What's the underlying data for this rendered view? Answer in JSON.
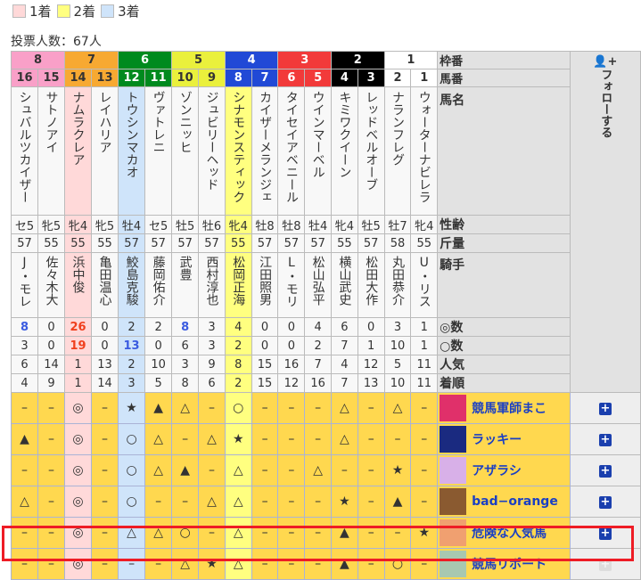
{
  "legend": [
    {
      "label": "1着",
      "color": "#ffd9d9"
    },
    {
      "label": "2着",
      "color": "#ffff80"
    },
    {
      "label": "3着",
      "color": "#cfe4fa"
    }
  ],
  "votes": "投票人数：67人",
  "labels": {
    "waku": "枠番",
    "umaban": "馬番",
    "name": "馬名",
    "sexage": "性齢",
    "weight": "斤量",
    "jockey": "騎手",
    "honmei": "◎数",
    "taikou": "○数",
    "ninki": "人気",
    "result": "着順"
  },
  "follow_label": "フォローする",
  "waku": [
    {
      "n": "8",
      "span": 2,
      "bg": "#f9a0c8",
      "fg": "#333"
    },
    {
      "n": "7",
      "span": 2,
      "bg": "#f7a932",
      "fg": "#333"
    },
    {
      "n": "6",
      "span": 2,
      "bg": "#008a1e",
      "fg": "#fff"
    },
    {
      "n": "5",
      "span": 2,
      "bg": "#eaf03c",
      "fg": "#333"
    },
    {
      "n": "4",
      "span": 2,
      "bg": "#2149d6",
      "fg": "#fff"
    },
    {
      "n": "3",
      "span": 2,
      "bg": "#f23a3a",
      "fg": "#fff"
    },
    {
      "n": "2",
      "span": 2,
      "bg": "#000000",
      "fg": "#fff"
    },
    {
      "n": "1",
      "span": 2,
      "bg": "#ffffff",
      "fg": "#333"
    }
  ],
  "highlight": {
    "1着": 2,
    "2着": 8,
    "3着": 4
  },
  "horses": {
    "umaban": [
      "16",
      "15",
      "14",
      "13",
      "12",
      "11",
      "10",
      "9",
      "8",
      "7",
      "6",
      "5",
      "4",
      "3",
      "2",
      "1"
    ],
    "names": [
      "シュバルツカイザー",
      "サトノアイ",
      "ナムラクレア",
      "レイハリア",
      "トウシンマカオ",
      "ヴァトレニ",
      "ゾンニッヒ",
      "ジュビリーヘッド",
      "シナモンスティック",
      "カイザーメランジェ",
      "タイセイアベニール",
      "ウインマーベル",
      "キミワクイーン",
      "レッドベルオーブ",
      "ナランフレグ",
      "ウォーターナビレラ"
    ],
    "sexage": [
      "セ5",
      "牝5",
      "牝4",
      "牝5",
      "牡4",
      "セ5",
      "牡5",
      "牡6",
      "牝4",
      "牡8",
      "牡8",
      "牡4",
      "牝4",
      "牡5",
      "牡7",
      "牝4"
    ],
    "weight": [
      "57",
      "55",
      "55",
      "55",
      "57",
      "57",
      "57",
      "57",
      "55",
      "57",
      "57",
      "57",
      "55",
      "57",
      "58",
      "55"
    ],
    "jockey": [
      "J・モレ",
      "佐々木大",
      "浜中俊",
      "亀田温心",
      "鮫島克駿",
      "藤岡佑介",
      "武豊",
      "西村淳也",
      "松岡正海",
      "江田照男",
      "L・モリ",
      "松山弘平",
      "横山武史",
      "松田大作",
      "丸田恭介",
      "U・リス"
    ],
    "honmei": [
      "8",
      "0",
      "26",
      "0",
      "2",
      "2",
      "8",
      "3",
      "4",
      "0",
      "0",
      "4",
      "6",
      "0",
      "3",
      "1"
    ],
    "taikou": [
      "3",
      "0",
      "19",
      "0",
      "13",
      "0",
      "6",
      "3",
      "2",
      "0",
      "0",
      "2",
      "7",
      "1",
      "10",
      "1"
    ],
    "ninki": [
      "6",
      "14",
      "1",
      "13",
      "2",
      "10",
      "3",
      "9",
      "8",
      "15",
      "16",
      "7",
      "4",
      "12",
      "5",
      "11"
    ],
    "result": [
      "4",
      "9",
      "1",
      "14",
      "3",
      "5",
      "8",
      "6",
      "2",
      "15",
      "12",
      "16",
      "7",
      "13",
      "10",
      "11"
    ]
  },
  "emphasis": {
    "honmei": {
      "0": "blue",
      "2": "red",
      "6": "blue"
    },
    "taikou": {
      "2": "red",
      "4": "blue"
    }
  },
  "predictions": [
    {
      "user": "競馬軍師まこ",
      "avatar": "#e0306a",
      "marks": [
        "–",
        "–",
        "◎",
        "–",
        "★",
        "▲",
        "△",
        "–",
        "○",
        "–",
        "–",
        "–",
        "△",
        "–",
        "△",
        "–"
      ],
      "follow_enabled": true
    },
    {
      "user": "ラッキー",
      "avatar": "#1a2a80",
      "marks": [
        "▲",
        "–",
        "◎",
        "–",
        "○",
        "△",
        "–",
        "△",
        "★",
        "–",
        "–",
        "–",
        "△",
        "–",
        "–",
        "–"
      ],
      "follow_enabled": true
    },
    {
      "user": "アザラシ",
      "avatar": "#d8b0e8",
      "marks": [
        "–",
        "–",
        "◎",
        "–",
        "○",
        "△",
        "▲",
        "–",
        "△",
        "–",
        "–",
        "△",
        "–",
        "–",
        "★",
        "–"
      ],
      "follow_enabled": true
    },
    {
      "user": "bad−orange",
      "avatar": "#8a5a30",
      "marks": [
        "△",
        "–",
        "◎",
        "–",
        "○",
        "–",
        "–",
        "△",
        "△",
        "–",
        "–",
        "–",
        "★",
        "–",
        "▲",
        "–"
      ],
      "follow_enabled": true
    },
    {
      "user": "危険な人気馬",
      "avatar": "#f0a070",
      "marks": [
        "–",
        "–",
        "◎",
        "–",
        "△",
        "△",
        "○",
        "–",
        "△",
        "–",
        "–",
        "–",
        "▲",
        "–",
        "–",
        "★"
      ],
      "follow_enabled": true
    },
    {
      "user": "競馬リポート",
      "avatar": "#a8c8b0",
      "marks": [
        "–",
        "–",
        "◎",
        "–",
        "–",
        "–",
        "△",
        "★",
        "△",
        "–",
        "–",
        "–",
        "▲",
        "–",
        "○",
        "–"
      ],
      "follow_enabled": false
    }
  ]
}
